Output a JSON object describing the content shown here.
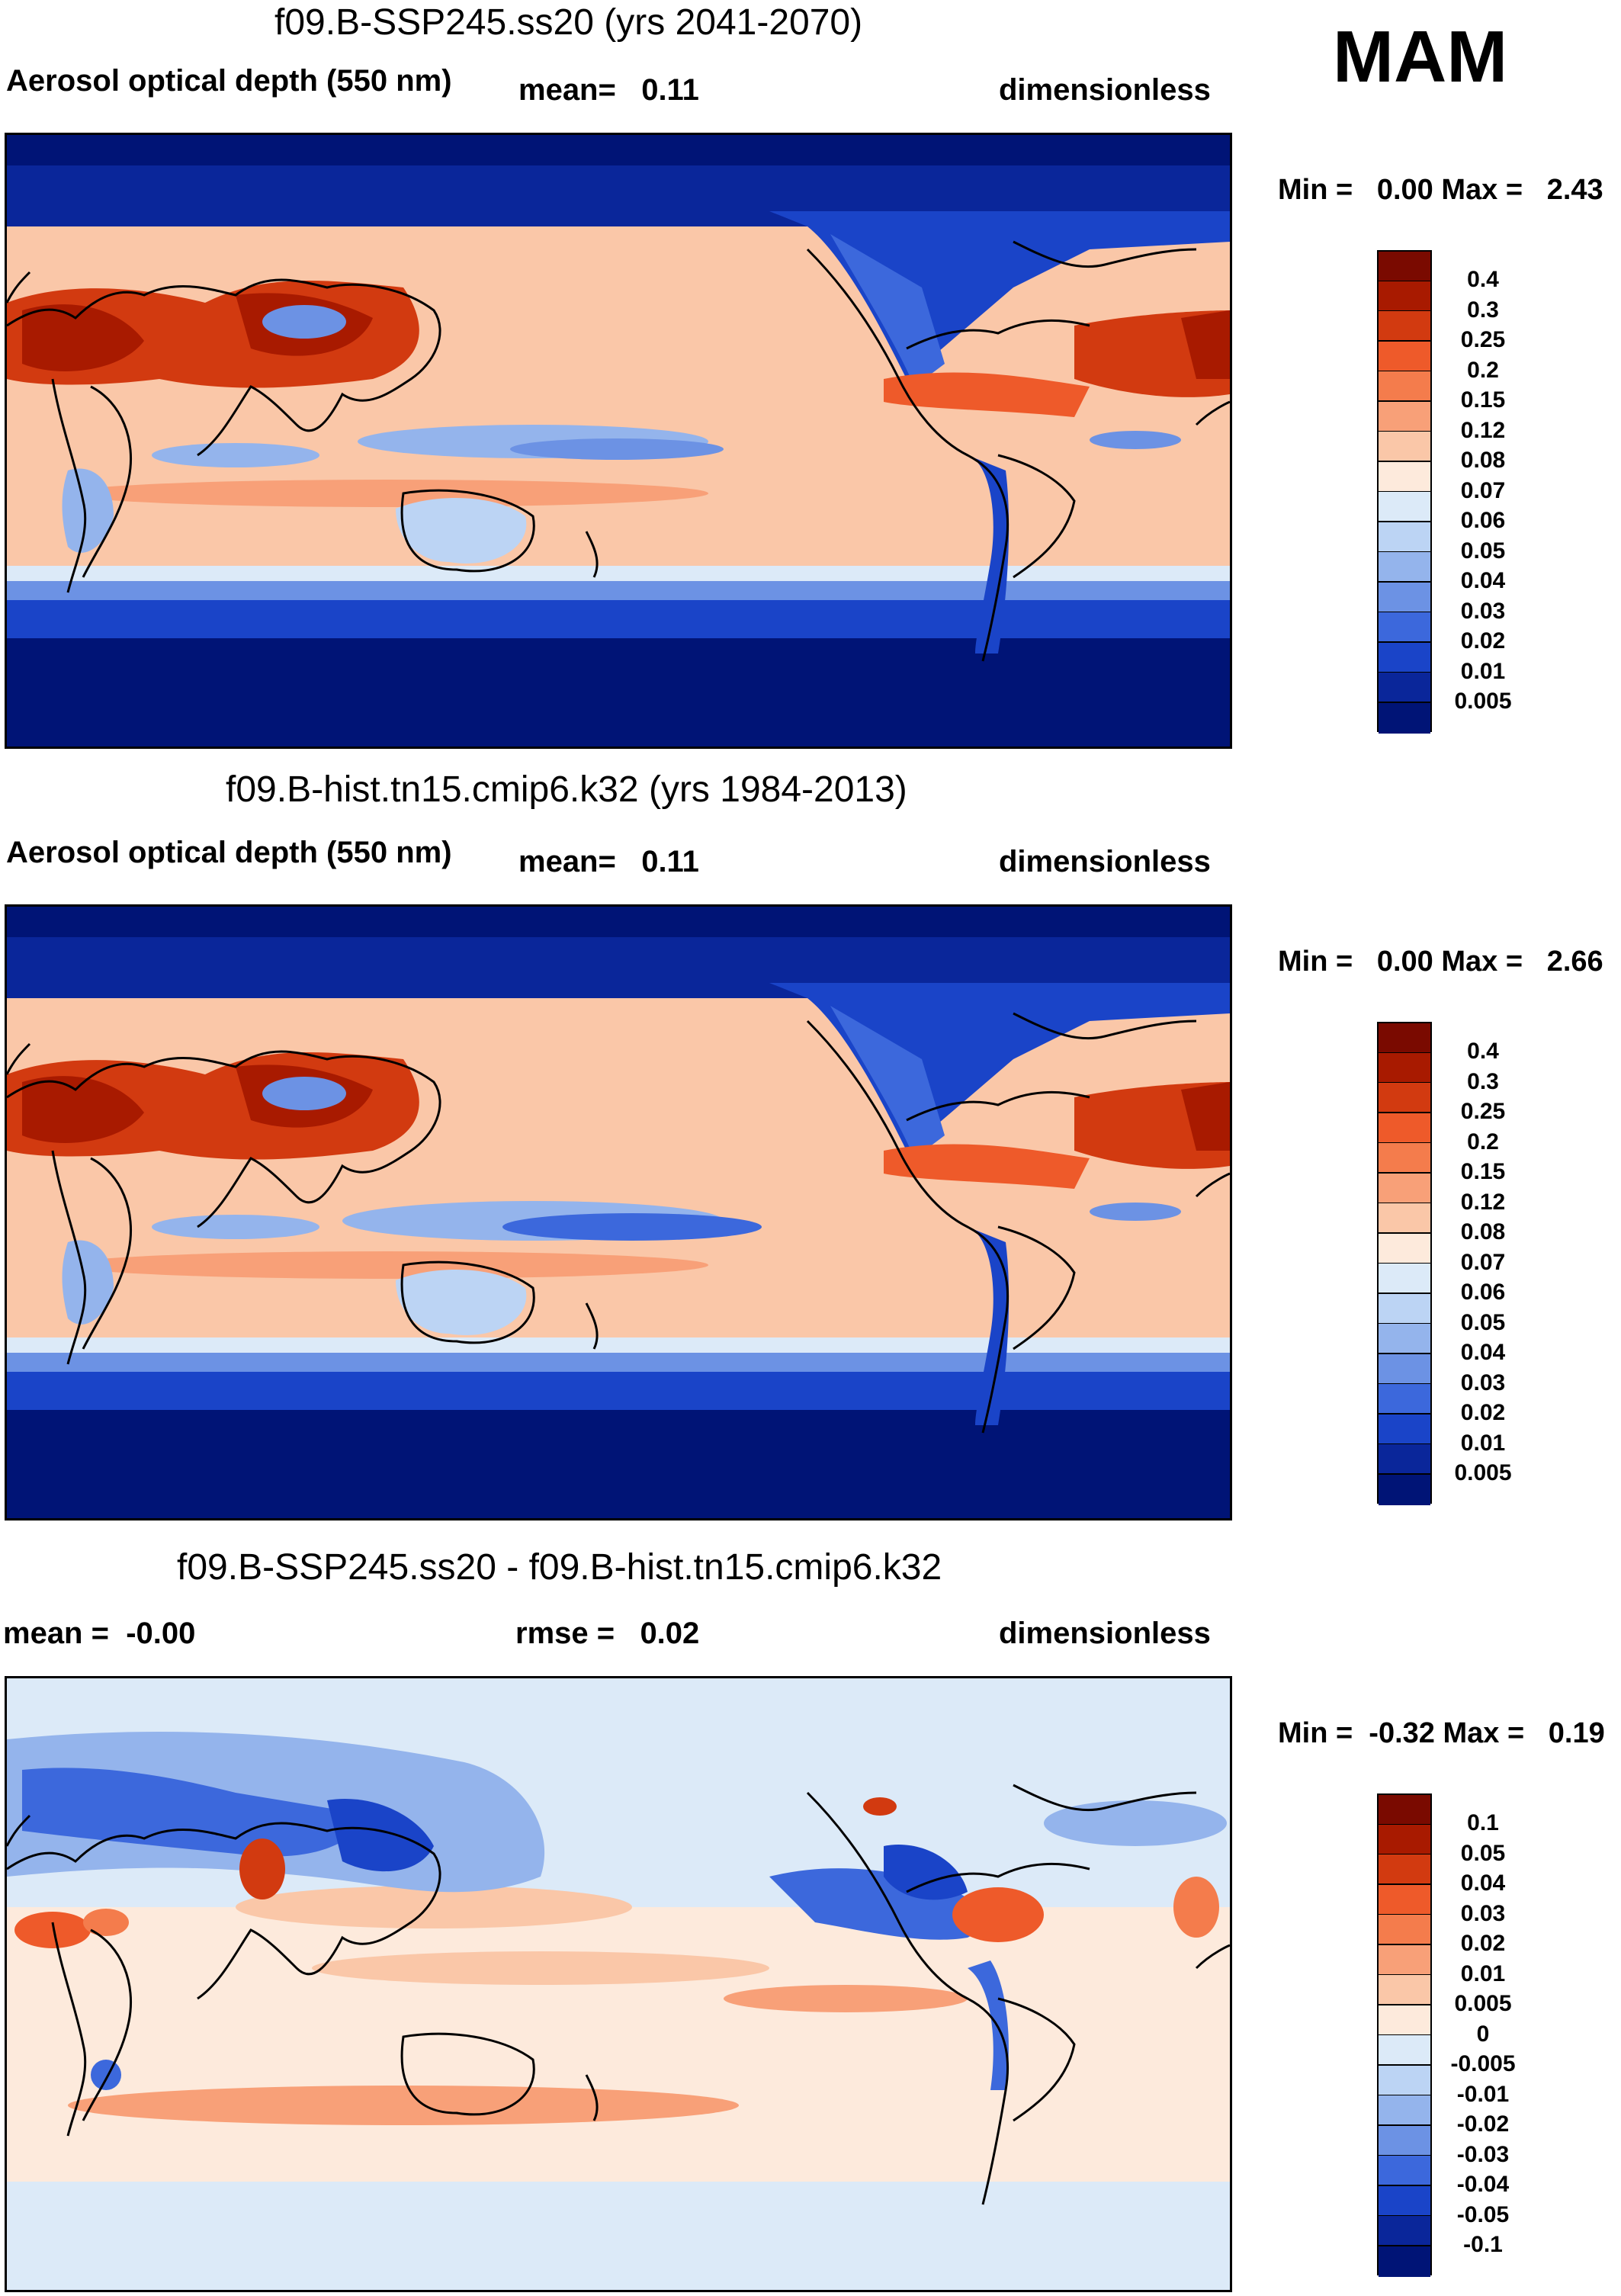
{
  "season": "MAM",
  "panels": [
    {
      "title": "f09.B-SSP245.ss20 (yrs 2041-2070)",
      "left": "Aerosol optical depth (550 nm)",
      "middle": "mean=   0.11",
      "right": "dimensionless",
      "minmax": "Min =   0.00 Max =   2.43",
      "levels": [
        "0.4",
        "0.3",
        "0.25",
        "0.2",
        "0.15",
        "0.12",
        "0.08",
        "0.07",
        "0.06",
        "0.05",
        "0.04",
        "0.03",
        "0.02",
        "0.01",
        "0.005"
      ]
    },
    {
      "title": "f09.B-hist.tn15.cmip6.k32 (yrs 1984-2013)",
      "left": "Aerosol optical depth (550 nm)",
      "middle": "mean=   0.11",
      "right": "dimensionless",
      "minmax": "Min =   0.00 Max =   2.66",
      "levels": [
        "0.4",
        "0.3",
        "0.25",
        "0.2",
        "0.15",
        "0.12",
        "0.08",
        "0.07",
        "0.06",
        "0.05",
        "0.04",
        "0.03",
        "0.02",
        "0.01",
        "0.005"
      ]
    },
    {
      "title": "f09.B-SSP245.ss20 - f09.B-hist.tn15.cmip6.k32",
      "left": "mean =  -0.00",
      "middle": "rmse =   0.02",
      "right": "dimensionless",
      "minmax": "Min =  -0.32 Max =   0.19",
      "levels": [
        "0.1",
        "0.05",
        "0.04",
        "0.03",
        "0.02",
        "0.01",
        "0.005",
        "0",
        "-0.005",
        "-0.01",
        "-0.02",
        "-0.03",
        "-0.04",
        "-0.05",
        "-0.1"
      ]
    }
  ],
  "colors": {
    "abs_scale": [
      "#7a0a00",
      "#a81a00",
      "#d23a10",
      "#ee5a2a",
      "#f47c4c",
      "#f8a078",
      "#fac7a8",
      "#fdeadc",
      "#dceaf8",
      "#bcd4f4",
      "#94b4ec",
      "#6c92e4",
      "#3c68dc",
      "#1a44c8",
      "#0a269a",
      "#001476"
    ],
    "diff_scale": [
      "#7a0a00",
      "#a81a00",
      "#d23a10",
      "#ee5a2a",
      "#f47c4c",
      "#f8a078",
      "#fac7a8",
      "#fdeadc",
      "#dceaf8",
      "#bcd4f4",
      "#94b4ec",
      "#6c92e4",
      "#3c68dc",
      "#1a44c8",
      "#0a269a",
      "#001476"
    ]
  }
}
